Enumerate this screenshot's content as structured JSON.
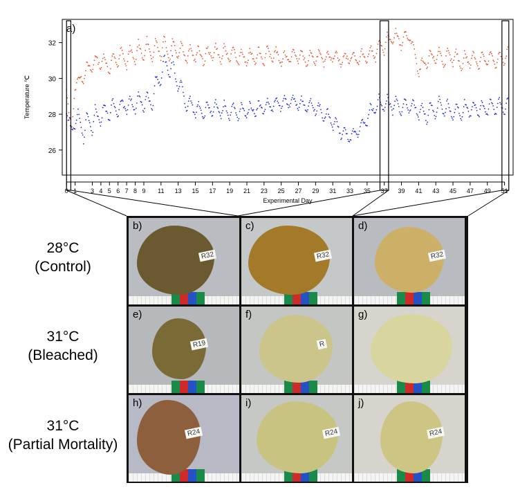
{
  "chart_data": {
    "type": "scatter",
    "panel_label": "a)",
    "xlabel": "Experimental Day",
    "ylabel": "Temperature ℃",
    "xlim": [
      -0.5,
      52
    ],
    "ylim": [
      24.6,
      33.3
    ],
    "y_ticks": [
      26,
      28,
      30,
      32
    ],
    "x_ticks": [
      0,
      1,
      3,
      4,
      5,
      6,
      7,
      8,
      9,
      11,
      13,
      15,
      17,
      19,
      21,
      23,
      25,
      27,
      29,
      31,
      33,
      35,
      37,
      39,
      41,
      43,
      45,
      47,
      49,
      51
    ],
    "x_tick_labels": [
      "0",
      "1",
      "3",
      "4",
      "5",
      "6",
      "7",
      "8",
      "9",
      "11",
      "13",
      "15",
      "17",
      "19",
      "21",
      "23",
      "25",
      "27",
      "29",
      "31",
      "33",
      "35",
      "37",
      "39",
      "41",
      "43",
      "45",
      "47",
      "49",
      "51"
    ],
    "highlight_windows": [
      [
        0,
        0.5
      ],
      [
        36.5,
        37.5
      ],
      [
        50.7,
        51.5
      ]
    ],
    "series": [
      {
        "color": "#e4572e",
        "x": [
          0,
          0.3,
          0.6,
          1,
          2,
          3,
          4,
          5,
          6,
          7,
          8,
          9,
          10,
          11,
          12,
          13,
          14,
          15,
          16,
          17,
          18,
          19,
          20,
          21,
          22,
          23,
          24,
          25,
          26,
          27,
          28,
          29,
          30,
          31,
          32,
          33,
          34,
          35,
          36,
          37,
          38,
          39,
          40,
          41,
          42,
          43,
          44,
          45,
          46,
          47,
          48,
          49,
          50,
          51
        ],
        "y": [
          29.5,
          27.8,
          27.2,
          29.6,
          30.2,
          30.8,
          31.0,
          30.7,
          31.2,
          31.1,
          31.4,
          31.6,
          31.5,
          31.8,
          31.6,
          31.7,
          31.3,
          31.4,
          31.2,
          31.5,
          31.3,
          31.4,
          31.2,
          31.1,
          31.3,
          31.2,
          31.4,
          31.1,
          31.2,
          31.3,
          31.0,
          31.2,
          31.1,
          31.3,
          31.0,
          31.2,
          31.1,
          31.3,
          31.5,
          31.9,
          32.3,
          32.1,
          32.4,
          30.4,
          31.0,
          31.3,
          31.1,
          31.2,
          30.9,
          31.1,
          31.0,
          31.1,
          31.0,
          31.2
        ],
        "amp": [
          0.2,
          0.2,
          0.2,
          0.3,
          0.4,
          0.5,
          0.5,
          0.5,
          0.6,
          0.6,
          0.7,
          0.7,
          0.7,
          0.8,
          0.7,
          0.6,
          0.5,
          0.5,
          0.5,
          0.5,
          0.5,
          0.5,
          0.5,
          0.4,
          0.5,
          0.5,
          0.5,
          0.4,
          0.4,
          0.4,
          0.4,
          0.4,
          0.4,
          0.4,
          0.4,
          0.4,
          0.4,
          0.4,
          0.5,
          0.5,
          0.5,
          0.5,
          0.4,
          0.4,
          0.5,
          0.5,
          0.5,
          0.5,
          0.5,
          0.5,
          0.5,
          0.5,
          0.5,
          0.5
        ]
      },
      {
        "color": "#1f2ed6",
        "x": [
          0,
          0.3,
          0.6,
          1,
          2,
          3,
          4,
          5,
          6,
          7,
          8,
          9,
          10,
          11,
          12,
          13,
          14,
          15,
          16,
          17,
          18,
          19,
          20,
          21,
          22,
          23,
          24,
          25,
          26,
          27,
          28,
          29,
          30,
          31,
          32,
          33,
          34,
          35,
          36,
          37,
          38,
          39,
          40,
          41,
          42,
          43,
          44,
          45,
          46,
          47,
          48,
          49,
          50,
          51
        ],
        "y": [
          28.3,
          27.4,
          27.0,
          27.8,
          27.2,
          27.6,
          28.0,
          28.2,
          28.4,
          28.5,
          28.6,
          28.7,
          28.8,
          30.4,
          30.8,
          29.8,
          28.6,
          28.3,
          28.2,
          28.3,
          28.2,
          28.2,
          28.1,
          28.2,
          28.3,
          28.4,
          28.5,
          28.6,
          28.7,
          28.6,
          28.5,
          28.4,
          28.0,
          27.6,
          27.0,
          26.7,
          27.0,
          27.8,
          28.5,
          28.6,
          28.5,
          28.4,
          28.5,
          28.2,
          28.0,
          28.3,
          28.4,
          28.1,
          28.2,
          28.3,
          28.3,
          28.4,
          28.4,
          28.5
        ],
        "amp": [
          0.3,
          0.4,
          0.4,
          0.6,
          0.8,
          0.8,
          0.7,
          0.6,
          0.5,
          0.5,
          0.5,
          0.6,
          0.7,
          0.8,
          0.9,
          0.6,
          0.6,
          0.5,
          0.5,
          0.5,
          0.5,
          0.5,
          0.5,
          0.4,
          0.4,
          0.4,
          0.4,
          0.4,
          0.4,
          0.4,
          0.4,
          0.4,
          0.5,
          0.5,
          0.4,
          0.3,
          0.3,
          0.5,
          0.5,
          0.5,
          0.5,
          0.5,
          0.5,
          0.5,
          0.6,
          0.6,
          0.6,
          0.5,
          0.5,
          0.5,
          0.5,
          0.5,
          0.5,
          0.5
        ]
      }
    ]
  },
  "row_labels": [
    {
      "line1": "28°C",
      "line2": "(Control)"
    },
    {
      "line1": "31°C",
      "line2": "(Bleached)"
    },
    {
      "line1": "31°C",
      "line2": "(Partial Mortality)"
    }
  ],
  "photo_panels": [
    {
      "label": "b)",
      "tag": "R32",
      "bg": "#b9bcc0",
      "coral": "#6b5a2f"
    },
    {
      "label": "c)",
      "tag": "R32",
      "bg": "#c5c8c8",
      "coral": "#a37a2a"
    },
    {
      "label": "d)",
      "tag": "R32",
      "bg": "#b8bcc0",
      "coral": "#cdb067"
    },
    {
      "label": "e)",
      "tag": "R19",
      "bg": "#b6b9bb",
      "coral": "#7a6a36"
    },
    {
      "label": "f)",
      "tag": "R",
      "bg": "#c4c6c4",
      "coral": "#cbc58b"
    },
    {
      "label": "g)",
      "tag": "",
      "bg": "#d6d4cc",
      "coral": "#d9d59e"
    },
    {
      "label": "h)",
      "tag": "R24",
      "bg": "#b7b9c4",
      "coral": "#8e5f3c"
    },
    {
      "label": "i)",
      "tag": "R24",
      "bg": "#c6c8c6",
      "coral": "#c9c382"
    },
    {
      "label": "j)",
      "tag": "R24",
      "bg": "#d6d4cc",
      "coral": "#cdc584"
    }
  ]
}
